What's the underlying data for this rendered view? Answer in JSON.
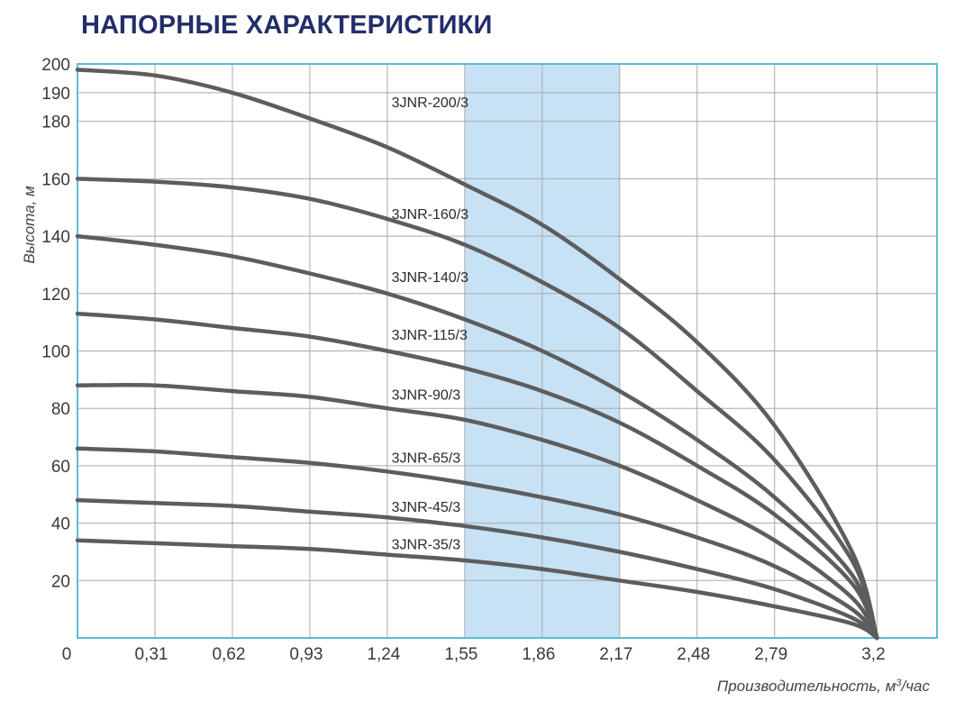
{
  "title": "НАПОРНЫЕ ХАРАКТЕРИСТИКИ",
  "chart_data": {
    "type": "line",
    "title": "НАПОРНЫЕ ХАРАКТЕРИСТИКИ",
    "xlabel": "Производительность, м",
    "xlabel_sup": "3",
    "xlabel_suffix": "/час",
    "ylabel": "Высота, м",
    "xlim": [
      0,
      3.44
    ],
    "ylim": [
      0,
      200
    ],
    "x_ticks": [
      0.31,
      0.62,
      0.93,
      1.24,
      1.55,
      1.86,
      2.17,
      2.48,
      2.79,
      3.2
    ],
    "x_tick_labels": [
      "0,31",
      "0,62",
      "0,93",
      "1,24",
      "1,55",
      "1,86",
      "2,17",
      "2,48",
      "2,79",
      "3,2"
    ],
    "x_origin_label": "0",
    "y_ticks": [
      20,
      40,
      60,
      80,
      100,
      120,
      140,
      160,
      180,
      190,
      200
    ],
    "y_tick_labels": [
      "20",
      "40",
      "60",
      "80",
      "100",
      "120",
      "140",
      "160",
      "180",
      "190",
      "200"
    ],
    "grid": true,
    "highlight_band": {
      "from": 1.55,
      "to": 2.17,
      "divider": 1.86,
      "color": "#c7e2f4"
    },
    "colors": {
      "curve": "#5d5d5f",
      "grid": "#aaaaaa",
      "frame": "#5bbbd6",
      "title": "#232d6b"
    },
    "series": [
      {
        "name": "3JNR-200/3",
        "x": [
          0,
          0.31,
          0.62,
          0.93,
          1.24,
          1.55,
          1.86,
          2.17,
          2.48,
          2.79,
          3.1,
          3.2
        ],
        "values": [
          198,
          196,
          190,
          181,
          171,
          158,
          144,
          125,
          103,
          74,
          30,
          0
        ]
      },
      {
        "name": "3JNR-160/3",
        "x": [
          0,
          0.31,
          0.62,
          0.93,
          1.24,
          1.55,
          1.86,
          2.17,
          2.48,
          2.79,
          3.1,
          3.2
        ],
        "values": [
          160,
          159,
          157,
          153,
          146,
          137,
          124,
          108,
          86,
          62,
          27,
          0
        ]
      },
      {
        "name": "3JNR-140/3",
        "x": [
          0,
          0.31,
          0.62,
          0.93,
          1.24,
          1.55,
          1.86,
          2.17,
          2.48,
          2.79,
          3.1,
          3.2
        ],
        "values": [
          140,
          137,
          133,
          127,
          120,
          111,
          100,
          86,
          69,
          49,
          22,
          0
        ]
      },
      {
        "name": "3JNR-115/3",
        "x": [
          0,
          0.31,
          0.62,
          0.93,
          1.24,
          1.55,
          1.86,
          2.17,
          2.48,
          2.79,
          3.1,
          3.2
        ],
        "values": [
          113,
          111,
          108,
          105,
          100,
          94,
          86,
          75,
          60,
          43,
          19,
          0
        ]
      },
      {
        "name": "3JNR-90/3",
        "x": [
          0,
          0.31,
          0.62,
          0.93,
          1.24,
          1.55,
          1.86,
          2.17,
          2.48,
          2.79,
          3.1,
          3.2
        ],
        "values": [
          88,
          88,
          86,
          84,
          80,
          76,
          69,
          60,
          48,
          34,
          14,
          0
        ]
      },
      {
        "name": "3JNR-65/3",
        "x": [
          0,
          0.31,
          0.62,
          0.93,
          1.24,
          1.55,
          1.86,
          2.17,
          2.48,
          2.79,
          3.1,
          3.2
        ],
        "values": [
          66,
          65,
          63,
          61,
          58,
          54,
          49,
          43,
          35,
          25,
          10,
          0
        ]
      },
      {
        "name": "3JNR-45/3",
        "x": [
          0,
          0.31,
          0.62,
          0.93,
          1.24,
          1.55,
          1.86,
          2.17,
          2.48,
          2.79,
          3.1,
          3.2
        ],
        "values": [
          48,
          47,
          46,
          44,
          42,
          39,
          35,
          30,
          24,
          17,
          7,
          0
        ]
      },
      {
        "name": "3JNR-35/3",
        "x": [
          0,
          0.31,
          0.62,
          0.93,
          1.24,
          1.55,
          1.86,
          2.17,
          2.48,
          2.79,
          3.1,
          3.2
        ],
        "values": [
          34,
          33,
          32,
          31,
          29,
          27,
          24,
          20,
          16,
          11,
          5,
          0
        ]
      }
    ],
    "series_labels": [
      {
        "name": "3JNR-200/3",
        "x": 1.25,
        "y": 185
      },
      {
        "name": "3JNR-160/3",
        "x": 1.25,
        "y": 146
      },
      {
        "name": "3JNR-140/3",
        "x": 1.25,
        "y": 124
      },
      {
        "name": "3JNR-115/3",
        "x": 1.25,
        "y": 104
      },
      {
        "name": "3JNR-90/3",
        "x": 1.25,
        "y": 83
      },
      {
        "name": "3JNR-65/3",
        "x": 1.25,
        "y": 61
      },
      {
        "name": "3JNR-45/3",
        "x": 1.25,
        "y": 44
      },
      {
        "name": "3JNR-35/3",
        "x": 1.25,
        "y": 31
      }
    ]
  }
}
